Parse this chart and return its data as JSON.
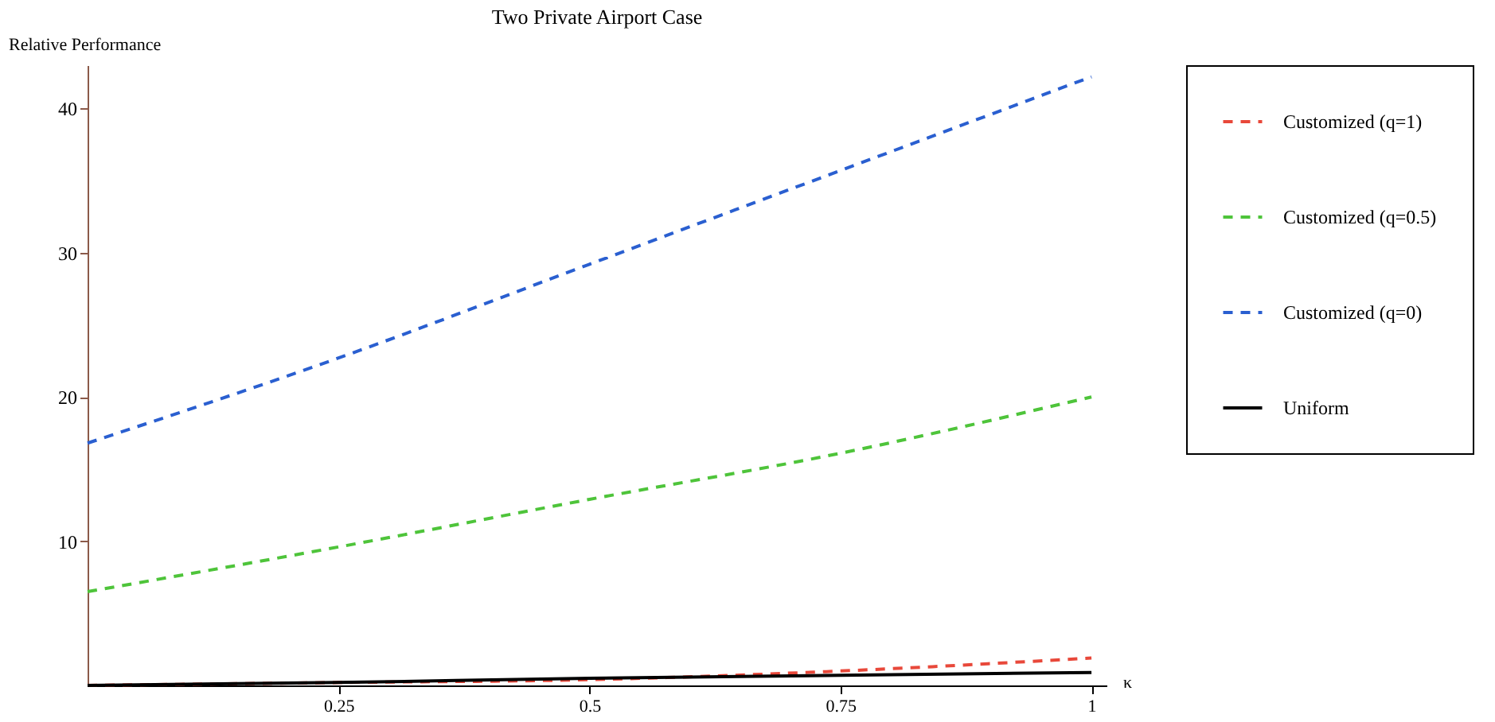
{
  "chart_data": {
    "type": "line",
    "title": "Two Private Airport Case",
    "xlabel": "κ",
    "ylabel": "Relative Performance",
    "x": [
      0,
      0.25,
      0.5,
      0.75,
      1
    ],
    "series": [
      {
        "name": "Customized (q=1)",
        "color": "#e8483a",
        "line_style": "dashed",
        "values": [
          0,
          0.2,
          0.4,
          1.0,
          1.9
        ]
      },
      {
        "name": "Customized (q=0.5)",
        "color": "#4ec43a",
        "line_style": "dashed",
        "values": [
          6.5,
          9.6,
          12.9,
          16.1,
          20.0
        ]
      },
      {
        "name": "Customized (q=0)",
        "color": "#2a5fd0",
        "line_style": "dashed",
        "values": [
          16.8,
          22.7,
          29.2,
          35.7,
          42.2
        ]
      },
      {
        "name": "Uniform",
        "color": "#000000",
        "line_style": "solid",
        "values": [
          0,
          0.2,
          0.5,
          0.7,
          0.9
        ]
      }
    ],
    "xlim": [
      0,
      1.015
    ],
    "ylim": [
      0,
      43
    ],
    "xticks": [
      0.25,
      0.5,
      0.75,
      1
    ],
    "yticks": [
      10,
      20,
      30,
      40
    ],
    "grid": false,
    "legend": "right",
    "marker": "none"
  }
}
